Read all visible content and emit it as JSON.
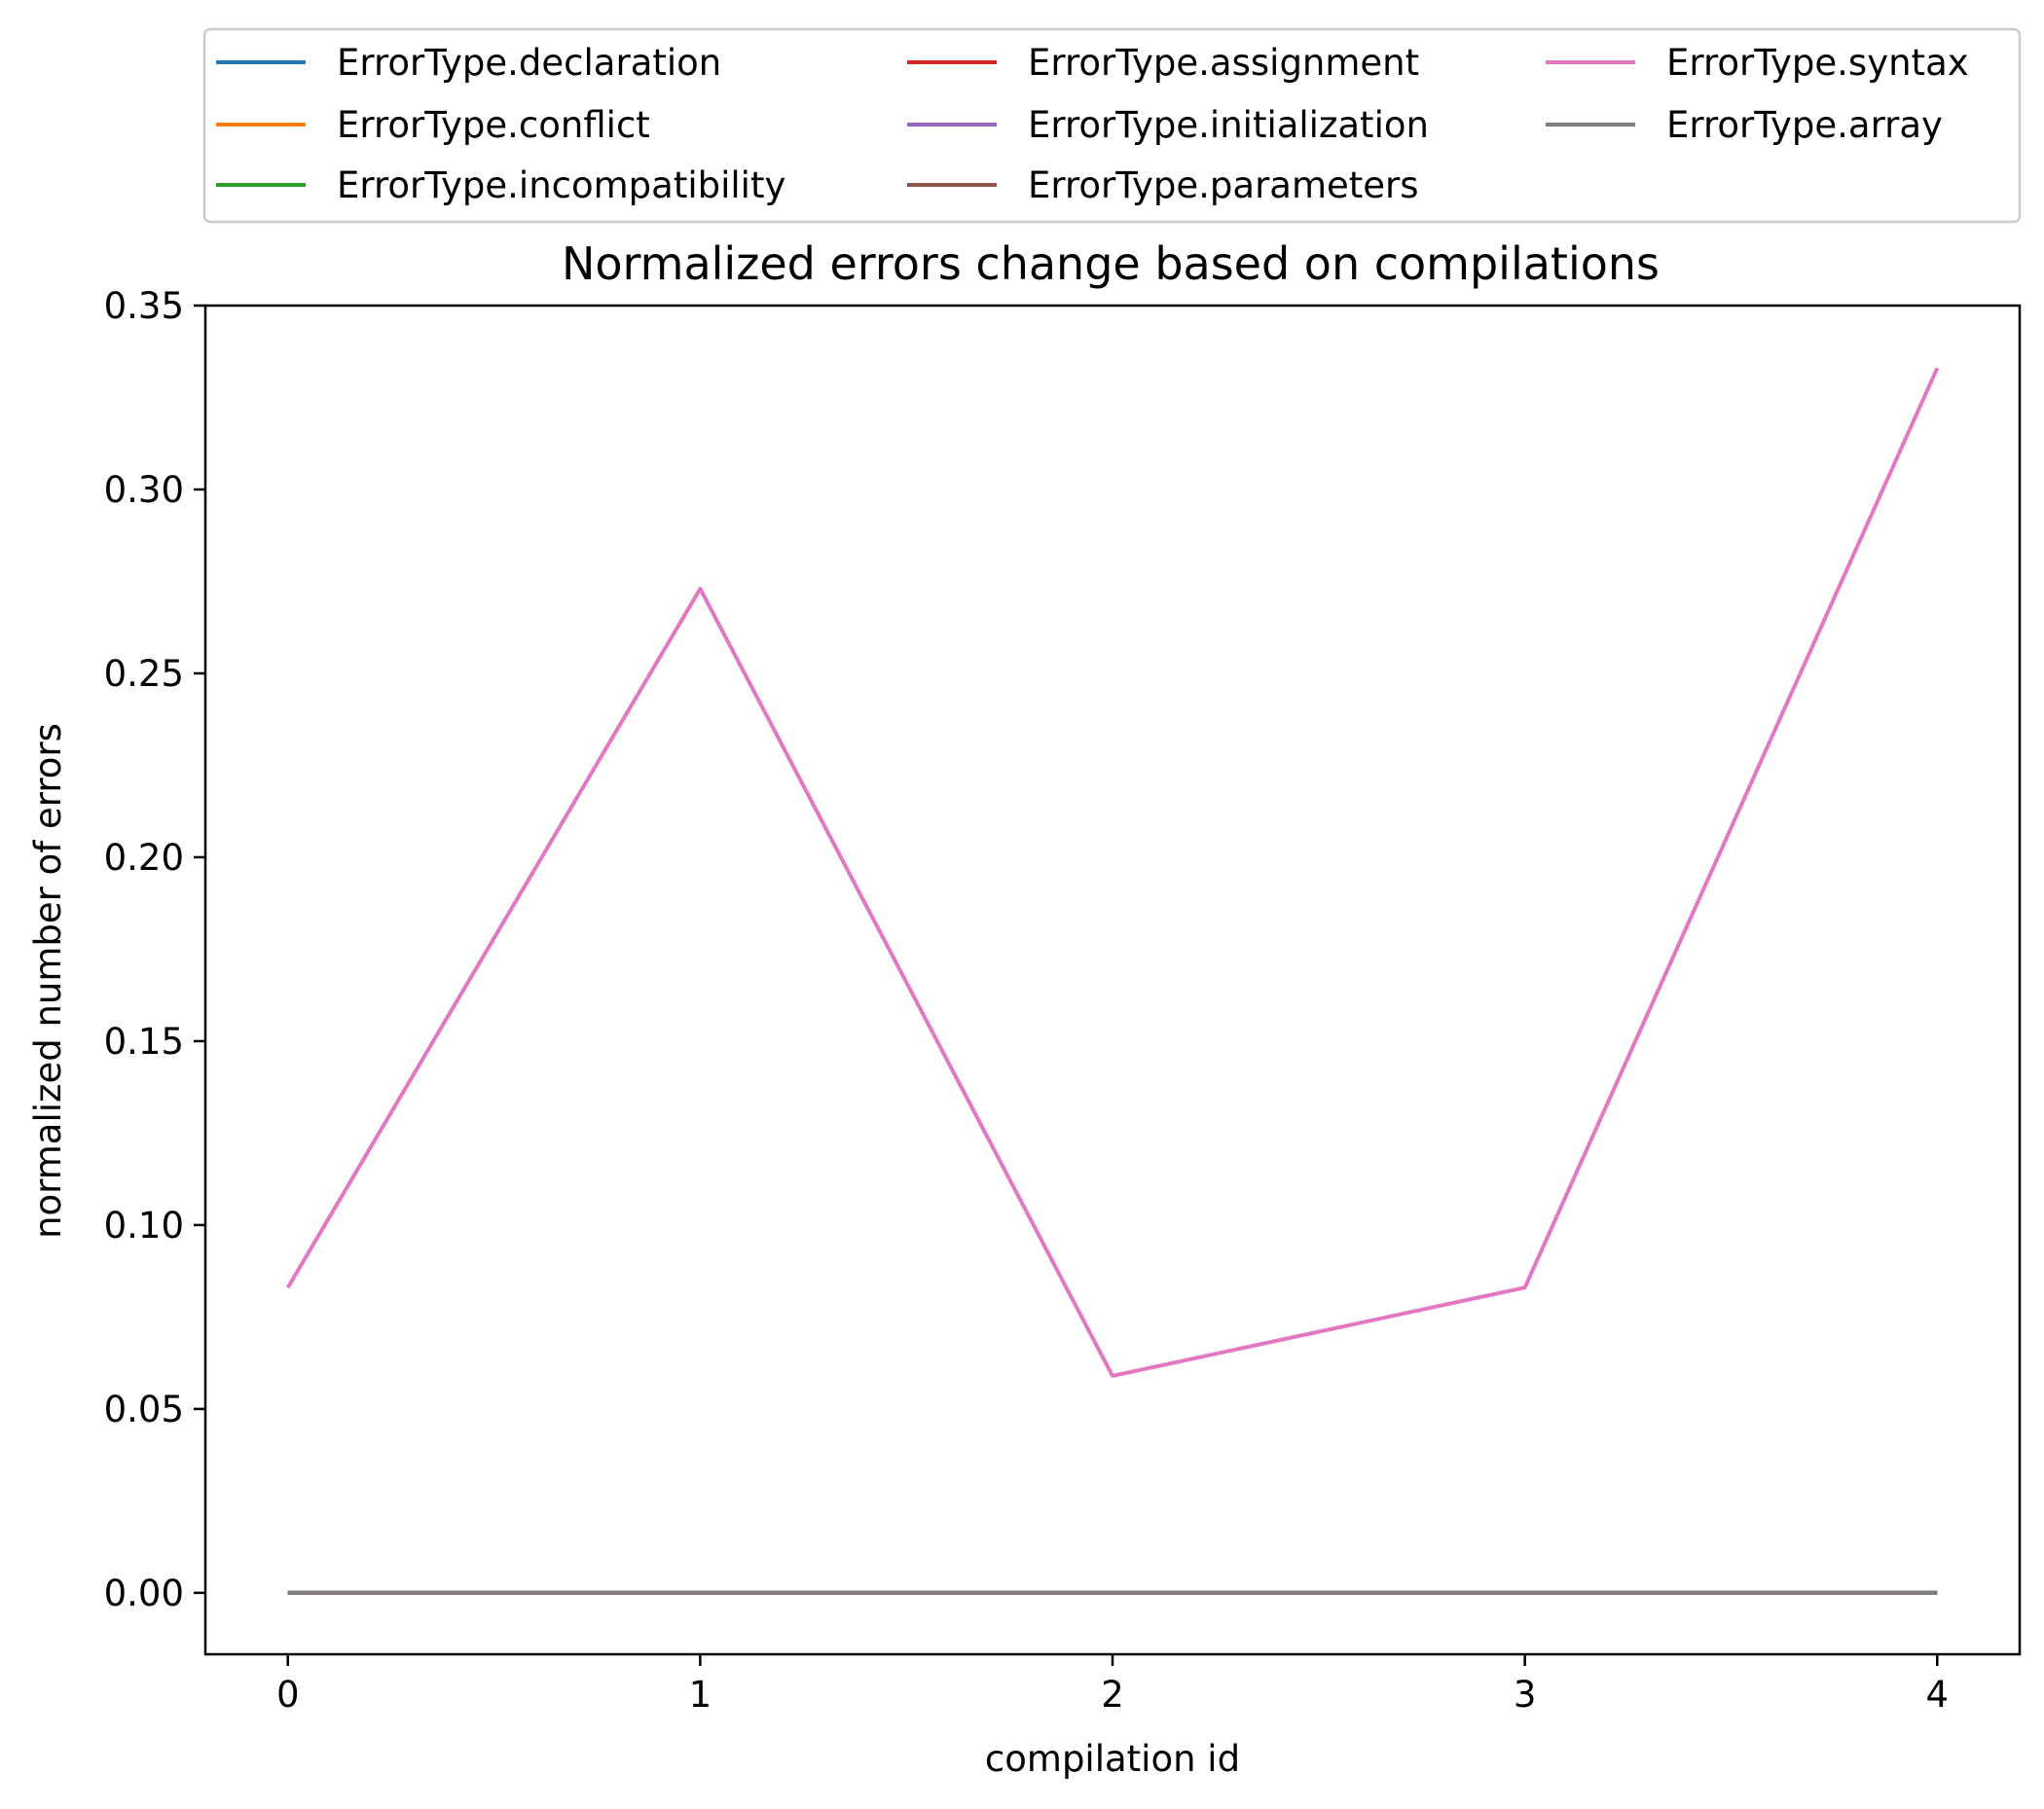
{
  "chart_data": {
    "type": "line",
    "title": "Normalized errors change based on compilations",
    "xlabel": "compilation id",
    "ylabel": "normalized number of errors",
    "x": [
      0,
      1,
      2,
      3,
      4
    ],
    "xticks": [
      "0",
      "1",
      "2",
      "3",
      "4"
    ],
    "yticks": [
      "0.00",
      "0.05",
      "0.10",
      "0.15",
      "0.20",
      "0.25",
      "0.30",
      "0.35"
    ],
    "xlim": [
      -0.2,
      4.2
    ],
    "ylim": [
      -0.0167,
      0.35
    ],
    "grid": false,
    "legend_position": "top",
    "series": [
      {
        "name": "ErrorType.declaration",
        "color": "#1f77b4",
        "values": [
          0,
          0,
          0,
          0,
          0
        ]
      },
      {
        "name": "ErrorType.conflict",
        "color": "#ff7f0e",
        "values": [
          0,
          0,
          0,
          0,
          0
        ]
      },
      {
        "name": "ErrorType.incompatibility",
        "color": "#2ca02c",
        "values": [
          0,
          0,
          0,
          0,
          0
        ]
      },
      {
        "name": "ErrorType.assignment",
        "color": "#d62728",
        "values": [
          0,
          0,
          0,
          0,
          0
        ]
      },
      {
        "name": "ErrorType.initialization",
        "color": "#9467bd",
        "values": [
          0,
          0,
          0,
          0,
          0
        ]
      },
      {
        "name": "ErrorType.parameters",
        "color": "#8c564b",
        "values": [
          0,
          0,
          0,
          0,
          0
        ]
      },
      {
        "name": "ErrorType.syntax",
        "color": "#e377c2",
        "values": [
          0.083,
          0.273,
          0.059,
          0.083,
          0.333
        ]
      },
      {
        "name": "ErrorType.array",
        "color": "#7f7f7f",
        "values": [
          0,
          0,
          0,
          0,
          0
        ]
      }
    ]
  }
}
